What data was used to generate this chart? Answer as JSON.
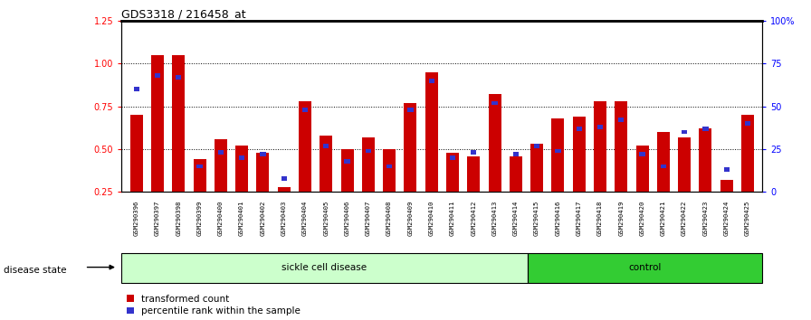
{
  "title": "GDS3318 / 216458_at",
  "samples": [
    "GSM290396",
    "GSM290397",
    "GSM290398",
    "GSM290399",
    "GSM290400",
    "GSM290401",
    "GSM290402",
    "GSM290403",
    "GSM290404",
    "GSM290405",
    "GSM290406",
    "GSM290407",
    "GSM290408",
    "GSM290409",
    "GSM290410",
    "GSM290411",
    "GSM290412",
    "GSM290413",
    "GSM290414",
    "GSM290415",
    "GSM290416",
    "GSM290417",
    "GSM290418",
    "GSM290419",
    "GSM290420",
    "GSM290421",
    "GSM290422",
    "GSM290423",
    "GSM290424",
    "GSM290425"
  ],
  "red_values": [
    0.7,
    1.05,
    1.05,
    0.44,
    0.56,
    0.52,
    0.48,
    0.28,
    0.78,
    0.58,
    0.5,
    0.57,
    0.5,
    0.77,
    0.95,
    0.48,
    0.46,
    0.82,
    0.46,
    0.53,
    0.68,
    0.69,
    0.78,
    0.78,
    0.52,
    0.6,
    0.57,
    0.62,
    0.32,
    0.7
  ],
  "blue_pct": [
    60,
    68,
    67,
    15,
    23,
    20,
    22,
    8,
    48,
    27,
    18,
    24,
    15,
    48,
    65,
    20,
    23,
    52,
    22,
    27,
    24,
    37,
    38,
    42,
    22,
    15,
    35,
    37,
    13,
    40
  ],
  "sickle_count": 19,
  "control_count": 11,
  "sickle_label": "sickle cell disease",
  "control_label": "control",
  "disease_state_label": "disease state",
  "legend_red": "transformed count",
  "legend_blue": "percentile rank within the sample",
  "ylim_left": [
    0.25,
    1.25
  ],
  "ylim_right": [
    0,
    100
  ],
  "yticks_left": [
    0.25,
    0.5,
    0.75,
    1.0,
    1.25
  ],
  "ytick_labels_left": [
    "0.25",
    "0.50",
    "0.75",
    "1.00",
    "1.25"
  ],
  "yticks_right": [
    0,
    25,
    50,
    75,
    100
  ],
  "ytick_labels_right": [
    "0",
    "25",
    "50",
    "75",
    "100%"
  ],
  "bar_color_red": "#CC0000",
  "bar_color_blue": "#3333CC",
  "sickle_bg": "#CCFFCC",
  "control_bg": "#33CC33"
}
